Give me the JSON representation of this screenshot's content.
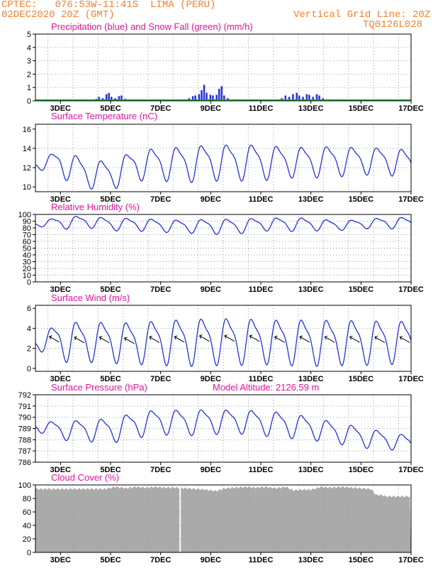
{
  "header": {
    "line1": "CPTEC:   076:53W-11:41S  LIMA (PERU)",
    "line2": "02DEC2020 20Z (GMT)",
    "grid_note": "Vertical Grid Line: 20Z",
    "run_code": "TQ0126L028"
  },
  "colors": {
    "header": "#f0822d",
    "title": "#e0149c",
    "line": "#2233dd",
    "snow": "#11aa33",
    "cloud": "#aaaaaa"
  },
  "chart_data": [
    {
      "id": "precip",
      "type": "bar",
      "title": "Precipitation (blue) and Snow Fall (green) (mm/h)",
      "ylim": [
        0,
        5
      ],
      "yticks": [
        "0",
        "1",
        "2",
        "3",
        "4",
        "5"
      ],
      "xticks": [
        "3DEC",
        "5DEC",
        "7DEC",
        "9DEC",
        "11DEC",
        "13DEC",
        "15DEC",
        "17DEC"
      ],
      "series": [
        {
          "name": "Precipitation",
          "points": [
            [
              3.35,
              0.15
            ],
            [
              3.45,
              0.3
            ],
            [
              3.6,
              0.2
            ],
            [
              3.75,
              0.5
            ],
            [
              3.85,
              0.6
            ],
            [
              3.95,
              0.3
            ],
            [
              4.1,
              0.2
            ],
            [
              4.25,
              0.35
            ],
            [
              4.35,
              0.4
            ],
            [
              4.5,
              0.15
            ],
            [
              7.05,
              0.2
            ],
            [
              7.2,
              0.35
            ],
            [
              7.3,
              0.4
            ],
            [
              7.45,
              0.5
            ],
            [
              7.55,
              0.8
            ],
            [
              7.65,
              1.2
            ],
            [
              7.75,
              0.6
            ],
            [
              7.9,
              0.45
            ],
            [
              8.0,
              0.4
            ],
            [
              8.15,
              0.45
            ],
            [
              8.25,
              0.9
            ],
            [
              8.35,
              1.1
            ],
            [
              8.45,
              0.4
            ],
            [
              8.6,
              0.2
            ],
            [
              10.75,
              0.2
            ],
            [
              10.9,
              0.4
            ],
            [
              11.05,
              0.3
            ],
            [
              11.2,
              0.5
            ],
            [
              11.35,
              0.6
            ],
            [
              11.45,
              0.4
            ],
            [
              11.6,
              0.3
            ],
            [
              11.75,
              0.5
            ],
            [
              11.85,
              0.45
            ],
            [
              12.0,
              0.3
            ],
            [
              12.15,
              0.5
            ],
            [
              12.25,
              0.4
            ],
            [
              12.4,
              0.2
            ],
            [
              13.3,
              0.05
            ],
            [
              13.6,
              0.05
            ]
          ]
        },
        {
          "name": "Snow Fall",
          "values": [
            0
          ]
        }
      ]
    },
    {
      "id": "temp",
      "type": "line",
      "title": "Surface Temperature (nC)",
      "ylim": [
        9.5,
        16.5
      ],
      "yticks": [
        "10",
        "12",
        "14",
        "16"
      ],
      "xticks": [
        "3DEC",
        "5DEC",
        "7DEC",
        "9DEC",
        "11DEC",
        "13DEC",
        "15DEC",
        "17DEC"
      ],
      "mean": [
        12.3,
        12.6,
        11.5,
        11.3,
        12.4,
        12.5,
        12.5,
        12.7,
        12.7,
        12.7,
        12.7,
        12.7,
        12.8,
        12.8,
        12.8,
        12.5,
        12.5
      ],
      "amp": [
        0.3,
        1.6,
        1.6,
        1.6,
        1.7,
        1.8,
        2.0,
        2.0,
        2.0,
        2.0,
        1.7,
        1.7,
        1.7,
        1.5,
        1.5,
        1.6,
        1.6
      ]
    },
    {
      "id": "rh",
      "type": "line",
      "title": "Relative Humidity (%)",
      "ylim": [
        0,
        100
      ],
      "yticks": [
        "0",
        "10",
        "20",
        "30",
        "40",
        "50",
        "60",
        "70",
        "80",
        "90",
        "100"
      ],
      "xticks": [
        "3DEC",
        "5DEC",
        "7DEC",
        "9DEC",
        "11DEC",
        "13DEC",
        "15DEC",
        "17DEC"
      ],
      "mean": [
        86,
        88,
        90,
        86,
        86,
        84,
        83,
        83,
        83,
        86,
        86,
        86,
        84,
        86,
        88,
        88,
        90
      ],
      "amp": [
        3,
        10,
        9,
        10,
        10,
        10,
        10,
        12,
        12,
        10,
        11,
        10,
        8,
        7,
        9,
        9,
        7
      ]
    },
    {
      "id": "wind",
      "type": "line",
      "title": "Surface Wind (m/s)",
      "ylim": [
        -0.3,
        6.3
      ],
      "yticks": [
        "0",
        "2",
        "4",
        "6"
      ],
      "xticks": [
        "3DEC",
        "5DEC",
        "7DEC",
        "9DEC",
        "11DEC",
        "13DEC",
        "15DEC",
        "17DEC"
      ],
      "mean": [
        2.5,
        2.9,
        2.8,
        2.8,
        2.7,
        2.8,
        2.8,
        2.9,
        2.9,
        2.9,
        2.8,
        2.8,
        2.8,
        2.8,
        2.8,
        2.8,
        2.8
      ],
      "amp": [
        0.5,
        2.2,
        2.1,
        2.2,
        2.2,
        2.4,
        2.5,
        2.5,
        2.5,
        2.4,
        2.4,
        2.5,
        2.4,
        2.4,
        2.3,
        2.3,
        2.2
      ]
    },
    {
      "id": "pres",
      "type": "line",
      "title": "Surface Pressure (hPa)",
      "annotation": "Model Altitude: 2126.59  m",
      "ylim": [
        786,
        792
      ],
      "yticks": [
        "786",
        "787",
        "788",
        "789",
        "790",
        "791",
        "792"
      ],
      "xticks": [
        "3DEC",
        "5DEC",
        "7DEC",
        "9DEC",
        "11DEC",
        "13DEC",
        "15DEC",
        "17DEC"
      ],
      "mean": [
        789.2,
        788.9,
        788.9,
        788.9,
        789.4,
        789.7,
        789.6,
        789.7,
        789.7,
        789.6,
        789.4,
        789.1,
        788.7,
        788.3,
        788.0,
        787.7,
        787.5
      ],
      "amp": [
        0.4,
        0.9,
        1.0,
        1.2,
        1.2,
        1.2,
        1.2,
        1.2,
        1.1,
        1.2,
        1.2,
        1.1,
        1.0,
        1.0,
        0.8,
        0.8,
        0.6
      ]
    },
    {
      "id": "cloud",
      "type": "area",
      "title": "Cloud Cover (%)",
      "ylim": [
        0,
        100
      ],
      "yticks": [
        "0",
        "20",
        "40",
        "60",
        "80",
        "100"
      ],
      "xticks": [
        "3DEC",
        "5DEC",
        "7DEC",
        "9DEC",
        "11DEC",
        "13DEC",
        "15DEC",
        "17DEC"
      ],
      "points": [
        [
          2.8,
          94
        ],
        [
          3.2,
          97
        ],
        [
          3.6,
          95
        ],
        [
          4.0,
          97
        ],
        [
          4.4,
          96
        ],
        [
          4.8,
          97
        ],
        [
          5.2,
          96
        ],
        [
          5.6,
          96
        ],
        [
          6.0,
          95
        ],
        [
          6.4,
          94
        ],
        [
          6.8,
          93
        ],
        [
          7.2,
          91
        ],
        [
          7.6,
          95
        ],
        [
          8.0,
          96
        ],
        [
          8.4,
          97
        ],
        [
          8.8,
          96
        ],
        [
          9.2,
          97
        ],
        [
          9.6,
          95
        ],
        [
          10.0,
          97
        ],
        [
          10.3,
          92
        ],
        [
          10.6,
          93
        ],
        [
          11.0,
          93
        ],
        [
          11.4,
          97
        ],
        [
          11.8,
          96
        ],
        [
          12.2,
          97
        ],
        [
          12.6,
          96
        ],
        [
          13.0,
          95
        ],
        [
          13.4,
          94
        ],
        [
          13.6,
          85
        ],
        [
          13.8,
          85
        ],
        [
          14.0,
          83
        ]
      ],
      "gap_at": 5.75
    }
  ]
}
